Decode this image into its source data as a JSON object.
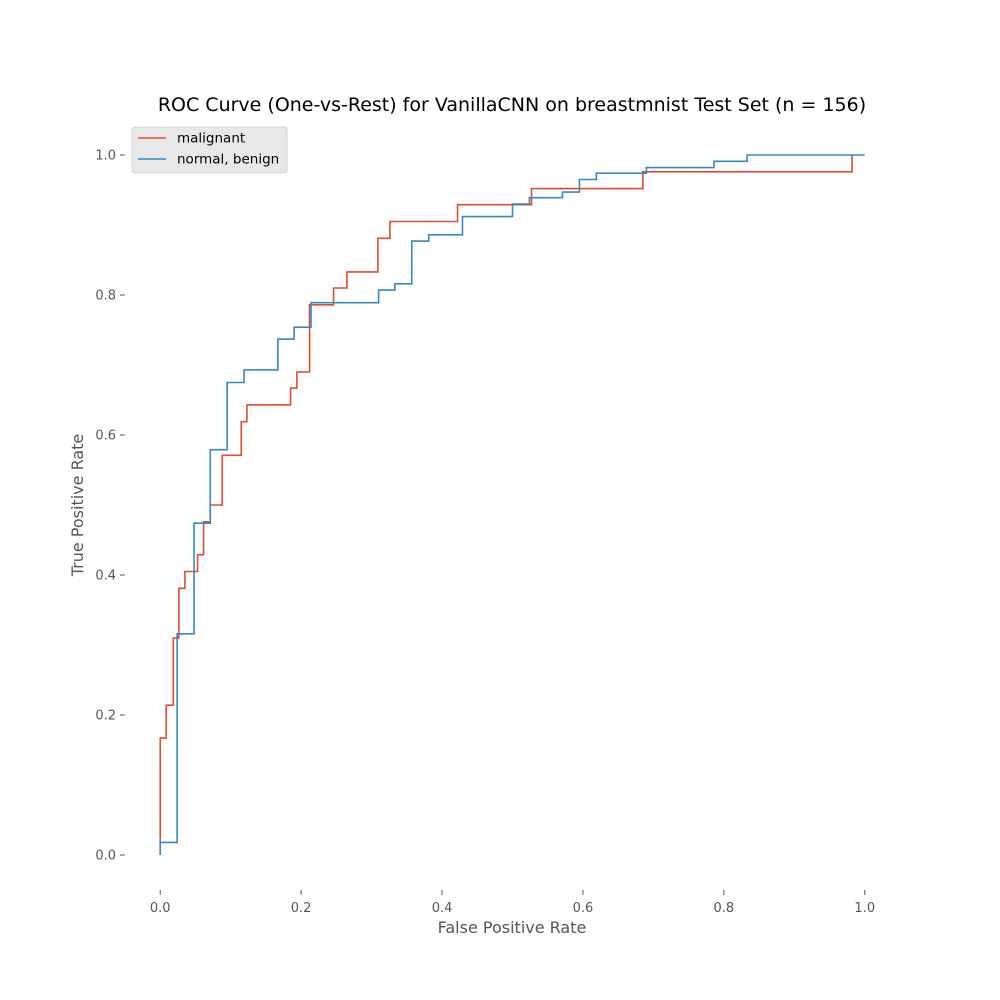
{
  "chart_data": {
    "type": "line",
    "step": true,
    "title": "ROC Curve (One-vs-Rest) for VanillaCNN on breastmnist Test Set (n = 156)",
    "xlabel": "False Positive Rate",
    "ylabel": "True Positive Rate",
    "xlim": [
      -0.05,
      1.05
    ],
    "ylim": [
      -0.05,
      1.05
    ],
    "xticks": [
      0.0,
      0.2,
      0.4,
      0.6,
      0.8,
      1.0
    ],
    "yticks": [
      0.0,
      0.2,
      0.4,
      0.6,
      0.8,
      1.0
    ],
    "xtick_labels": [
      "0.0",
      "0.2",
      "0.4",
      "0.6",
      "0.8",
      "1.0"
    ],
    "ytick_labels": [
      "0.0",
      "0.2",
      "0.4",
      "0.6",
      "0.8",
      "1.0"
    ],
    "grid": false,
    "legend_position": "top-left",
    "series": [
      {
        "name": "malignant",
        "color": "#E24A33",
        "x": [
          0.0,
          0.0,
          0.0085,
          0.0085,
          0.0185,
          0.0185,
          0.0265,
          0.0265,
          0.035,
          0.035,
          0.053,
          0.053,
          0.0615,
          0.0615,
          0.071,
          0.071,
          0.088,
          0.088,
          0.115,
          0.115,
          0.123,
          0.123,
          0.185,
          0.185,
          0.194,
          0.194,
          0.212,
          0.212,
          0.246,
          0.246,
          0.265,
          0.265,
          0.309,
          0.309,
          0.326,
          0.326,
          0.422,
          0.422,
          0.527,
          0.527,
          0.685,
          0.685,
          0.982,
          0.982
        ],
        "y": [
          0.0,
          0.167,
          0.167,
          0.214,
          0.214,
          0.31,
          0.31,
          0.381,
          0.381,
          0.405,
          0.405,
          0.429,
          0.429,
          0.476,
          0.476,
          0.5,
          0.5,
          0.571,
          0.571,
          0.619,
          0.619,
          0.643,
          0.643,
          0.667,
          0.667,
          0.69,
          0.69,
          0.786,
          0.786,
          0.81,
          0.81,
          0.833,
          0.833,
          0.881,
          0.881,
          0.905,
          0.905,
          0.929,
          0.929,
          0.952,
          0.952,
          0.976,
          0.976,
          1.0
        ]
      },
      {
        "name": "normal, benign",
        "color": "#348ABD",
        "x": [
          0.0,
          0.0,
          0.024,
          0.024,
          0.048,
          0.048,
          0.071,
          0.071,
          0.095,
          0.095,
          0.119,
          0.119,
          0.167,
          0.167,
          0.19,
          0.19,
          0.214,
          0.214,
          0.31,
          0.31,
          0.333,
          0.333,
          0.357,
          0.357,
          0.381,
          0.381,
          0.429,
          0.429,
          0.5,
          0.5,
          0.524,
          0.524,
          0.571,
          0.571,
          0.595,
          0.595,
          0.619,
          0.619,
          0.69,
          0.69,
          0.786,
          0.786,
          0.833,
          0.833,
          1.0
        ],
        "y": [
          0.0,
          0.018,
          0.018,
          0.316,
          0.316,
          0.474,
          0.474,
          0.579,
          0.579,
          0.675,
          0.675,
          0.693,
          0.693,
          0.737,
          0.737,
          0.754,
          0.754,
          0.789,
          0.789,
          0.807,
          0.807,
          0.816,
          0.816,
          0.877,
          0.877,
          0.886,
          0.886,
          0.912,
          0.912,
          0.93,
          0.93,
          0.939,
          0.939,
          0.947,
          0.947,
          0.965,
          0.965,
          0.974,
          0.974,
          0.982,
          0.982,
          0.991,
          0.991,
          1.0,
          1.0
        ]
      }
    ]
  }
}
